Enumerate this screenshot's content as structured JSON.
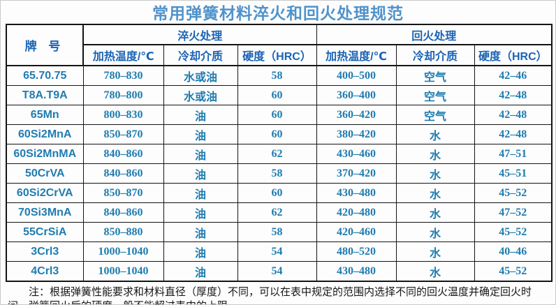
{
  "title": "常用弹簧材料淬火和回火处理规范",
  "table": {
    "grade_header": "牌  号",
    "group_headers": [
      "淬火处理",
      "回火处理"
    ],
    "sub_headers": [
      "加热温度/℃",
      "冷却介质",
      "硬度（HRC）",
      "加热温度/℃",
      "冷却介质",
      "硬度（HRC）"
    ],
    "rows": [
      [
        "65.70.75",
        "780–830",
        "水或油",
        "58",
        "400–500",
        "空气",
        "42–46"
      ],
      [
        "T8A.T9A",
        "780–800",
        "水或油",
        "60",
        "360–400",
        "空气",
        "42–48"
      ],
      [
        "65Mn",
        "800–830",
        "油",
        "60",
        "360–420",
        "空气",
        "42–48"
      ],
      [
        "60Si2MnA",
        "850–870",
        "油",
        "60",
        "380–420",
        "水",
        "42–48"
      ],
      [
        "60Si2MnMA",
        "840–860",
        "油",
        "62",
        "430–460",
        "水",
        "47–51"
      ],
      [
        "50CrVA",
        "840–860",
        "油",
        "58",
        "370–420",
        "水",
        "45–51"
      ],
      [
        "60Si2CrVA",
        "850–870",
        "油",
        "60",
        "430–480",
        "水",
        "45–52"
      ],
      [
        "70Si3MnA",
        "840–860",
        "油",
        "62",
        "420–480",
        "水",
        "47–52"
      ],
      [
        "55CrSiA",
        "850–880",
        "油",
        "58",
        "420–460",
        "水",
        "45–52"
      ],
      [
        "3Crl3",
        "1000–1040",
        "油",
        "54",
        "480–520",
        "水",
        "40–46"
      ],
      [
        "4Crl3",
        "1000–1040",
        "油",
        "54",
        "430–480",
        "水",
        "45–52"
      ]
    ]
  },
  "footnote": "注：根据弹簧性能要求和材料直径（厚度）不同，可以在表中规定的范围内选择不同的回火温度并确定回火时间。弹簧回火后的硬度一般不能超过表中的上限。",
  "colors": {
    "title_blue": "#4f92cb",
    "header_blue": "#1a63b4",
    "data_blue": "#1f7cb0",
    "border": "#141414"
  }
}
